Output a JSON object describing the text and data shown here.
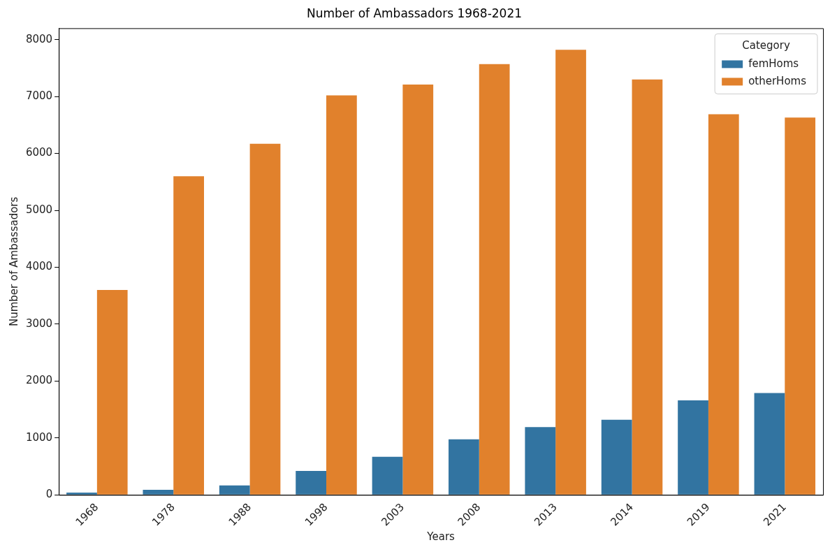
{
  "chart_data": {
    "type": "bar",
    "title": "Number of Ambassadors 1968-2021",
    "xlabel": "Years",
    "ylabel": "Number of Ambassadors",
    "legend_title": "Category",
    "categories": [
      "1968",
      "1978",
      "1988",
      "1998",
      "2003",
      "2008",
      "2013",
      "2014",
      "2019",
      "2021"
    ],
    "series": [
      {
        "name": "femHoms",
        "color": "#3274a1",
        "values": [
          40,
          90,
          165,
          420,
          670,
          975,
          1190,
          1320,
          1660,
          1790
        ]
      },
      {
        "name": "otherHoms",
        "color": "#e1812c",
        "values": [
          3600,
          5600,
          6170,
          7020,
          7210,
          7570,
          7820,
          7300,
          6690,
          6630
        ]
      }
    ],
    "ylim": [
      0,
      8200
    ],
    "yticks": [
      0,
      1000,
      2000,
      3000,
      4000,
      5000,
      6000,
      7000,
      8000
    ],
    "grid": false,
    "legend": "top right"
  }
}
